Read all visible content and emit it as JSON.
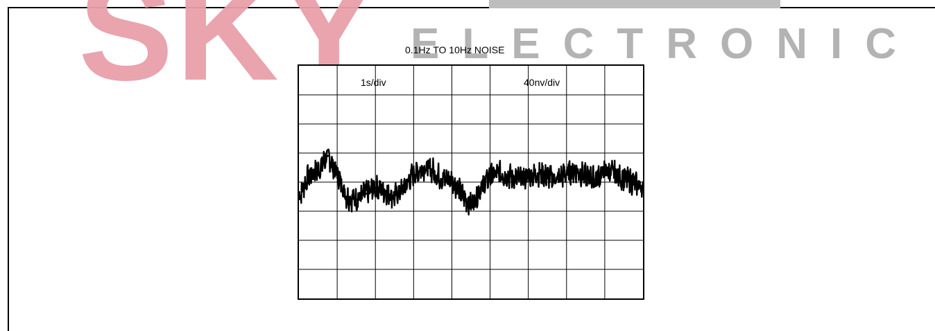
{
  "watermark": {
    "brand": "SKY",
    "tagline": "ELECTRONIC"
  },
  "chart_data": {
    "type": "line",
    "title": "0.1Hz TO 10Hz NOISE",
    "annotations": [
      "1s/div",
      "40nv/div"
    ],
    "xlim": [
      0,
      9
    ],
    "ylim": [
      -4,
      4
    ],
    "grid": true,
    "x_divisions": 9,
    "y_divisions": 8,
    "colors": {
      "trace": "#000000",
      "grid": "#000000"
    },
    "series": [
      {
        "x": [
          0,
          0.25,
          0.5,
          0.75,
          1.0,
          1.25,
          1.5,
          1.75,
          2.0,
          2.25,
          2.5,
          2.75,
          3.0,
          3.25,
          3.5,
          3.75,
          4.0,
          4.25,
          4.5,
          4.75,
          5.0,
          5.25,
          5.5,
          5.75,
          6.0,
          6.25,
          6.5,
          6.75,
          7.0,
          7.25,
          7.5,
          7.75,
          8.0,
          8.25,
          8.5,
          8.75,
          9.0
        ],
        "y": [
          -0.5,
          0.2,
          0.4,
          0.9,
          0.3,
          -0.5,
          -0.6,
          -0.4,
          -0.2,
          -0.3,
          -0.5,
          -0.2,
          0.3,
          0.5,
          0.4,
          0.1,
          0.1,
          -0.4,
          -0.8,
          -0.2,
          0.2,
          0.3,
          0.2,
          0.1,
          0.2,
          0.3,
          0.2,
          0.1,
          0.3,
          0.4,
          0.2,
          0.1,
          0.4,
          0.3,
          0.1,
          0.0,
          -0.2
        ]
      }
    ]
  }
}
